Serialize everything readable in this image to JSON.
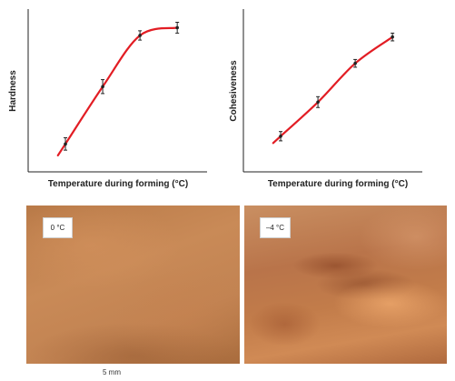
{
  "chart_data": [
    {
      "type": "line",
      "title": "",
      "xlabel": "Temperature during forming (°C)",
      "ylabel": "Hardness",
      "x": [
        1,
        2,
        3,
        4
      ],
      "y": [
        0.18,
        0.55,
        0.88,
        0.93
      ],
      "error": [
        0.04,
        0.045,
        0.03,
        0.035
      ],
      "xlim": [
        0,
        4.8
      ],
      "ylim": [
        0,
        1.05
      ],
      "ticks": "none",
      "grid": false,
      "line_color": "#e21d24",
      "marker_color": "#222222"
    },
    {
      "type": "line",
      "title": "",
      "xlabel": "Temperature during forming (°C)",
      "ylabel": "Cohesiveness",
      "x": [
        1,
        2,
        3,
        4
      ],
      "y": [
        0.23,
        0.45,
        0.7,
        0.87
      ],
      "error": [
        0.03,
        0.035,
        0.025,
        0.025
      ],
      "xlim": [
        0,
        4.8
      ],
      "ylim": [
        0,
        1.05
      ],
      "ticks": "none",
      "grid": false,
      "line_color": "#e21d24",
      "marker_color": "#222222"
    }
  ],
  "images": [
    {
      "label": "0 °C"
    },
    {
      "label": "–4 °C"
    }
  ],
  "scale_bar": "5 mm"
}
